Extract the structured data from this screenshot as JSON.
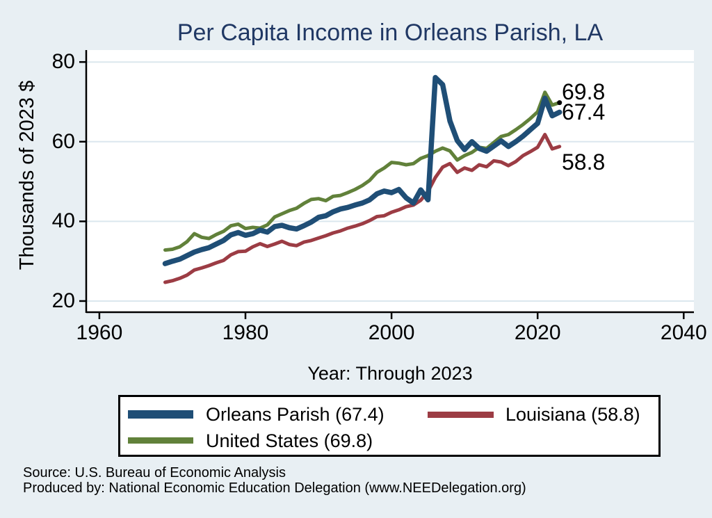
{
  "title": "Per Capita Income in Orleans Parish, LA",
  "footer": {
    "source": "Source: U.S. Bureau of Economic Analysis",
    "produced_by": "Produced by: National Economic Education Delegation (www.NEEDelegation.org)"
  },
  "colors": {
    "page_bg": "#e8eff3",
    "plot_bg": "#ffffff",
    "grid": "#dbe7ee",
    "axis": "#000000",
    "title": "#203864",
    "end_marker": "#000000"
  },
  "legend": {
    "entries": [
      {
        "key": "orleans",
        "label": "Orleans Parish (67.4)"
      },
      {
        "key": "louisiana",
        "label": "Louisiana (58.8)"
      },
      {
        "key": "us",
        "label": "United States (69.8)"
      }
    ]
  },
  "chart_data": {
    "type": "line",
    "title": "Per Capita Income in Orleans Parish, LA",
    "xlabel": "Year: Through 2023",
    "ylabel": "Thousands of 2023 $",
    "xlim": [
      1958.2,
      2041.4
    ],
    "ylim": [
      17.2,
      83.0
    ],
    "x_ticks": [
      "1960",
      "1980",
      "2000",
      "2020",
      "2040"
    ],
    "y_ticks": [
      "20",
      "40",
      "60",
      "80"
    ],
    "grid": true,
    "legend_position": "bottom",
    "x": [
      1969,
      1970,
      1971,
      1972,
      1973,
      1974,
      1975,
      1976,
      1977,
      1978,
      1979,
      1980,
      1981,
      1982,
      1983,
      1984,
      1985,
      1986,
      1987,
      1988,
      1989,
      1990,
      1991,
      1992,
      1993,
      1994,
      1995,
      1996,
      1997,
      1998,
      1999,
      2000,
      2001,
      2002,
      2003,
      2004,
      2005,
      2006,
      2007,
      2008,
      2009,
      2010,
      2011,
      2012,
      2013,
      2014,
      2015,
      2016,
      2017,
      2018,
      2019,
      2020,
      2021,
      2022,
      2023
    ],
    "series": [
      {
        "key": "orleans",
        "name": "Orleans Parish",
        "color": "#1f4e76",
        "line_width": 7.5,
        "end_label": "67.4",
        "end_value": 67.4,
        "end_marker": false,
        "values": [
          29.4,
          30.0,
          30.5,
          31.4,
          32.3,
          32.9,
          33.4,
          34.3,
          35.2,
          36.6,
          37.2,
          36.5,
          36.9,
          37.8,
          37.3,
          38.7,
          39.0,
          38.4,
          38.1,
          38.9,
          39.8,
          41.0,
          41.4,
          42.4,
          43.1,
          43.5,
          44.1,
          44.6,
          45.4,
          46.9,
          47.6,
          47.2,
          48.0,
          45.9,
          44.6,
          47.9,
          45.4,
          76.1,
          74.3,
          65.2,
          60.3,
          58.0,
          60.0,
          58.3,
          57.6,
          58.9,
          60.2,
          58.8,
          60.0,
          61.4,
          63.0,
          64.6,
          70.9,
          66.5,
          67.4
        ]
      },
      {
        "key": "louisiana",
        "name": "Louisiana",
        "color": "#9c3c44",
        "line_width": 5,
        "end_label": "58.8",
        "end_value": 58.8,
        "end_marker": false,
        "values": [
          24.7,
          25.1,
          25.7,
          26.5,
          27.8,
          28.3,
          28.9,
          29.6,
          30.2,
          31.6,
          32.4,
          32.5,
          33.6,
          34.4,
          33.7,
          34.3,
          35.0,
          34.2,
          33.9,
          34.8,
          35.2,
          35.8,
          36.4,
          37.1,
          37.6,
          38.3,
          38.8,
          39.4,
          40.2,
          41.2,
          41.4,
          42.3,
          42.9,
          43.7,
          44.1,
          45.3,
          47.5,
          51.0,
          53.6,
          54.5,
          52.3,
          53.4,
          52.8,
          54.2,
          53.7,
          55.2,
          54.9,
          54.0,
          55.0,
          56.5,
          57.5,
          58.6,
          61.8,
          58.2,
          58.8
        ]
      },
      {
        "key": "us",
        "name": "United States",
        "color": "#61813a",
        "line_width": 5,
        "end_label": "69.8",
        "end_value": 69.8,
        "end_marker": true,
        "values": [
          32.8,
          33.0,
          33.6,
          34.9,
          36.9,
          36.0,
          35.7,
          36.7,
          37.5,
          38.9,
          39.3,
          38.2,
          38.5,
          38.3,
          39.1,
          41.1,
          41.9,
          42.7,
          43.3,
          44.5,
          45.5,
          45.7,
          45.2,
          46.3,
          46.5,
          47.2,
          48.0,
          49.0,
          50.3,
          52.3,
          53.4,
          54.8,
          54.6,
          54.2,
          54.5,
          55.8,
          56.5,
          57.6,
          58.4,
          57.7,
          55.4,
          56.5,
          57.3,
          58.6,
          58.3,
          59.8,
          61.3,
          61.8,
          63.0,
          64.3,
          65.8,
          67.5,
          72.4,
          69.2,
          69.8
        ]
      }
    ]
  }
}
